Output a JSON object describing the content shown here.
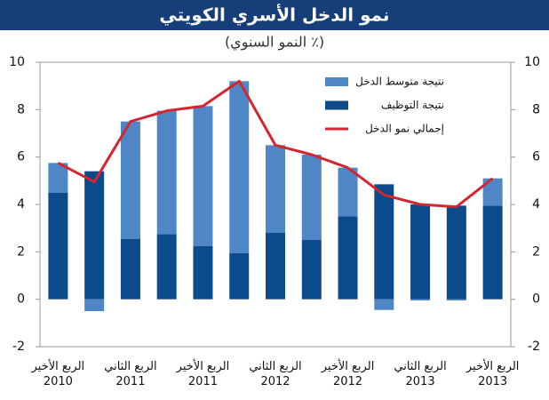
{
  "chart_data": {
    "type": "bar_line",
    "title": "نمو الدخل الأسري الكويتي",
    "subtitle": "(٪ النمو السنوي)",
    "categories": [
      "الربع الأخير\n2010",
      null,
      "الربع الثاني\n2011",
      null,
      "الربع الأخير\n2011",
      null,
      "الربع الثاني\n2012",
      null,
      "الربع الأخير\n2012",
      null,
      "الربع الثاني\n2013",
      null,
      "الربع الأخير\n2013"
    ],
    "series": [
      {
        "name": "نتيجة متوسط الدخل",
        "type": "bar",
        "color": "#4f86c6",
        "values": [
          1.25,
          -0.5,
          4.95,
          5.2,
          5.9,
          7.25,
          3.7,
          3.6,
          2.05,
          -0.45,
          -0.05,
          -0.05,
          1.15
        ]
      },
      {
        "name": "نتيجة التوظيف",
        "type": "bar",
        "color": "#0b4a8b",
        "values": [
          4.5,
          5.4,
          2.55,
          2.75,
          2.25,
          1.95,
          2.8,
          2.5,
          3.5,
          4.85,
          4.0,
          3.95,
          3.95
        ]
      },
      {
        "name": "إجمالي نمو الدخل",
        "type": "line",
        "color": "#d42630",
        "values": [
          5.75,
          4.95,
          7.5,
          7.95,
          8.15,
          9.2,
          6.5,
          6.1,
          5.55,
          4.4,
          4.0,
          3.9,
          5.1
        ]
      }
    ],
    "ylim": [
      -2,
      10
    ],
    "yticks": [
      -2,
      0,
      2,
      4,
      6,
      8,
      10
    ],
    "y2lim": [
      -2,
      10
    ],
    "y2ticks": [
      -2,
      0,
      2,
      4,
      6,
      8,
      10
    ],
    "grid": false,
    "legend": "top-right"
  }
}
